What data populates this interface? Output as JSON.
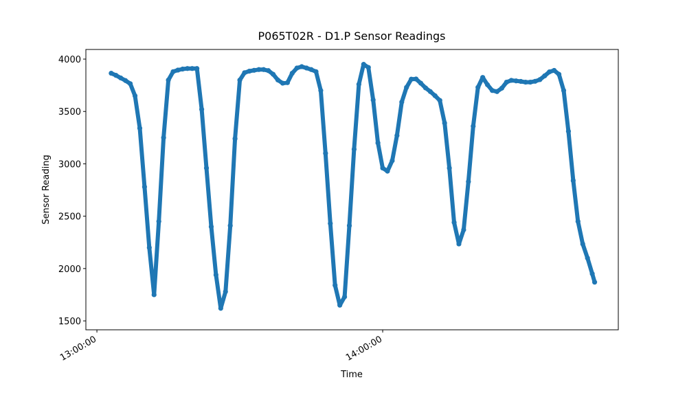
{
  "chart_data": {
    "type": "scatter",
    "title": "P065T02R - D1.P Sensor Readings",
    "x_label": "Time",
    "y_label": "Sensor Reading",
    "color": "#1f77b4",
    "x": [
      "13:03:00",
      "13:04:00",
      "13:05:00",
      "13:06:00",
      "13:07:00",
      "13:08:00",
      "13:09:00",
      "13:10:00",
      "13:11:00",
      "13:12:00",
      "13:13:00",
      "13:14:00",
      "13:15:00",
      "13:16:00",
      "13:17:00",
      "13:18:00",
      "13:19:00",
      "13:20:00",
      "13:21:00",
      "13:22:00",
      "13:23:00",
      "13:24:00",
      "13:25:00",
      "13:26:00",
      "13:27:00",
      "13:28:00",
      "13:29:00",
      "13:30:00",
      "13:31:00",
      "13:32:00",
      "13:33:00",
      "13:34:00",
      "13:35:00",
      "13:36:00",
      "13:37:00",
      "13:38:00",
      "13:39:00",
      "13:40:00",
      "13:41:00",
      "13:42:00",
      "13:43:00",
      "13:44:00",
      "13:45:00",
      "13:46:00",
      "13:47:00",
      "13:48:00",
      "13:49:00",
      "13:50:00",
      "13:51:00",
      "13:52:00",
      "13:53:00",
      "13:54:00",
      "13:55:00",
      "13:56:00",
      "13:57:00",
      "13:58:00",
      "13:59:00",
      "14:00:00",
      "14:01:00",
      "14:02:00",
      "14:03:00",
      "14:04:00",
      "14:05:00",
      "14:06:00",
      "14:07:00",
      "14:08:00",
      "14:09:00",
      "14:10:00",
      "14:11:00",
      "14:12:00",
      "14:13:00",
      "14:14:00",
      "14:15:00",
      "14:16:00",
      "14:17:00",
      "14:18:00",
      "14:19:00",
      "14:20:00",
      "14:21:00",
      "14:22:00",
      "14:23:00",
      "14:24:00",
      "14:25:00",
      "14:26:00",
      "14:27:00",
      "14:28:00",
      "14:29:00",
      "14:30:00",
      "14:31:00",
      "14:32:00",
      "14:33:00",
      "14:34:00",
      "14:35:00",
      "14:36:00",
      "14:37:00",
      "14:38:00",
      "14:39:00",
      "14:40:00",
      "14:41:00",
      "14:42:00",
      "14:43:00",
      "14:44:00",
      "14:44:30"
    ],
    "values": [
      3865,
      3845,
      3820,
      3795,
      3765,
      3650,
      3340,
      2780,
      2200,
      1750,
      2450,
      3250,
      3800,
      3880,
      3895,
      3905,
      3910,
      3910,
      3910,
      3520,
      2960,
      2400,
      1940,
      1620,
      1780,
      2410,
      3240,
      3800,
      3870,
      3885,
      3893,
      3900,
      3900,
      3890,
      3855,
      3800,
      3770,
      3775,
      3865,
      3915,
      3928,
      3915,
      3900,
      3880,
      3700,
      3100,
      2430,
      1840,
      1650,
      1730,
      2410,
      3140,
      3760,
      3950,
      3920,
      3610,
      3200,
      2960,
      2930,
      3030,
      3270,
      3590,
      3730,
      3808,
      3810,
      3770,
      3725,
      3690,
      3650,
      3605,
      3390,
      2960,
      2440,
      2235,
      2370,
      2830,
      3360,
      3730,
      3825,
      3755,
      3700,
      3690,
      3722,
      3780,
      3797,
      3792,
      3787,
      3780,
      3780,
      3788,
      3804,
      3840,
      3878,
      3892,
      3855,
      3700,
      3310,
      2840,
      2450,
      2235,
      2100,
      1950,
      1870
    ],
    "xlim": [
      "12:57:41",
      "14:49:28"
    ],
    "xticks": [
      "13:00:00",
      "14:00:00"
    ],
    "ylim": [
      1415,
      4092
    ],
    "yticks": [
      1500,
      2000,
      2500,
      3000,
      3500,
      4000
    ]
  }
}
